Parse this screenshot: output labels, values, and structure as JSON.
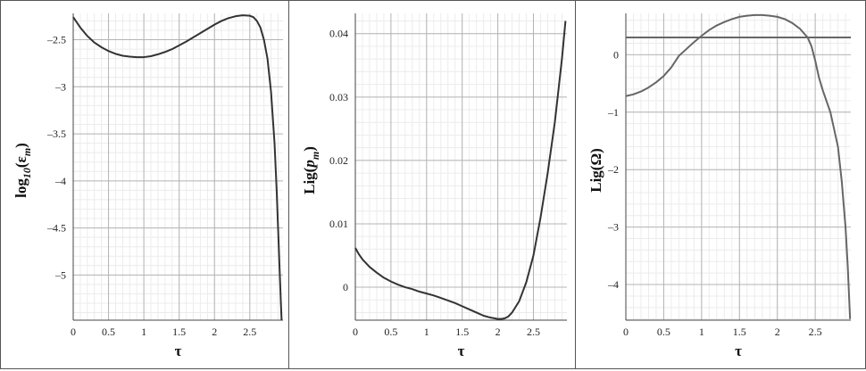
{
  "chart_data": [
    {
      "type": "line",
      "xlabel": "τ",
      "ylabel_parts": [
        "log",
        "10",
        "(ε",
        "m",
        ")"
      ],
      "xlim": [
        0,
        2.97
      ],
      "ylim": [
        -5.48,
        -2.22
      ],
      "xticks": [
        0,
        0.5,
        1,
        1.5,
        2,
        2.5
      ],
      "xtick_labels": [
        "0",
        "0.5",
        "1",
        "1.5",
        "2",
        "2.5"
      ],
      "yticks": [
        -2.5,
        -3,
        -3.5,
        -4,
        -4.5,
        -5
      ],
      "ytick_labels": [
        "–2.5",
        "–3",
        "–3.5",
        "–4",
        "–4.5",
        "–5"
      ],
      "grid": true,
      "line_color": "#333333",
      "series": [
        {
          "x": [
            0,
            0.1,
            0.2,
            0.3,
            0.4,
            0.5,
            0.6,
            0.7,
            0.8,
            0.9,
            1.0,
            1.1,
            1.2,
            1.3,
            1.4,
            1.5,
            1.6,
            1.7,
            1.8,
            1.9,
            2.0,
            2.1,
            2.2,
            2.3,
            2.4,
            2.5,
            2.55,
            2.6,
            2.65,
            2.7,
            2.75,
            2.8,
            2.85,
            2.88,
            2.9,
            2.92,
            2.94,
            2.95
          ],
          "y": [
            -2.26,
            -2.37,
            -2.46,
            -2.53,
            -2.58,
            -2.62,
            -2.65,
            -2.67,
            -2.68,
            -2.685,
            -2.685,
            -2.675,
            -2.655,
            -2.63,
            -2.6,
            -2.56,
            -2.52,
            -2.475,
            -2.43,
            -2.385,
            -2.34,
            -2.3,
            -2.27,
            -2.25,
            -2.24,
            -2.245,
            -2.26,
            -2.3,
            -2.37,
            -2.5,
            -2.7,
            -3.05,
            -3.6,
            -4.1,
            -4.5,
            -4.9,
            -5.3,
            -5.48
          ]
        }
      ]
    },
    {
      "type": "line",
      "xlabel": "τ",
      "ylabel_parts": [
        "Lig(",
        "p",
        "m",
        ")"
      ],
      "xlim": [
        0,
        2.97
      ],
      "ylim": [
        -0.0052,
        0.0432
      ],
      "xticks": [
        0,
        0.5,
        1,
        1.5,
        2,
        2.5
      ],
      "xtick_labels": [
        "0",
        "0.5",
        "1",
        "1.5",
        "2",
        "2.5"
      ],
      "yticks": [
        0,
        0.01,
        0.02,
        0.03,
        0.04
      ],
      "ytick_labels": [
        "0",
        "0.01",
        "0.02",
        "0.03",
        "0.04"
      ],
      "grid": true,
      "line_color": "#333333",
      "series": [
        {
          "x": [
            0,
            0.05,
            0.1,
            0.2,
            0.3,
            0.4,
            0.5,
            0.6,
            0.7,
            0.8,
            0.9,
            1.0,
            1.1,
            1.2,
            1.3,
            1.4,
            1.5,
            1.6,
            1.7,
            1.8,
            1.9,
            2.0,
            2.05,
            2.1,
            2.15,
            2.2,
            2.3,
            2.4,
            2.5,
            2.6,
            2.7,
            2.8,
            2.85,
            2.9,
            2.95
          ],
          "y": [
            0.0062,
            0.0052,
            0.0044,
            0.0032,
            0.0023,
            0.0015,
            0.0009,
            0.0004,
            0.0,
            -0.0003,
            -0.0007,
            -0.001,
            -0.0013,
            -0.0017,
            -0.0021,
            -0.0025,
            -0.003,
            -0.0035,
            -0.004,
            -0.0045,
            -0.0048,
            -0.005,
            -0.005,
            -0.0049,
            -0.0046,
            -0.004,
            -0.0022,
            0.0008,
            0.005,
            0.011,
            0.018,
            0.026,
            0.031,
            0.036,
            0.042
          ]
        }
      ]
    },
    {
      "type": "line",
      "xlabel": "τ",
      "ylabel_parts": [
        "Lig(Ω)"
      ],
      "xlim": [
        0,
        2.97
      ],
      "ylim": [
        -4.62,
        0.72
      ],
      "xticks": [
        0,
        0.5,
        1,
        1.5,
        2,
        2.5
      ],
      "xtick_labels": [
        "0",
        "0.5",
        "1",
        "1.5",
        "2",
        "2.5"
      ],
      "yticks": [
        0,
        -1,
        -2,
        -3,
        -4
      ],
      "ytick_labels": [
        "0",
        "–1",
        "–2",
        "–3",
        "–4"
      ],
      "grid": true,
      "line_color": "#666666",
      "series": [
        {
          "x": [
            0,
            0.1,
            0.2,
            0.3,
            0.4,
            0.5,
            0.6,
            0.7,
            0.8,
            0.85,
            0.9,
            1.0,
            1.1,
            1.2,
            1.3,
            1.4,
            1.5,
            1.6,
            1.7,
            1.8,
            1.9,
            2.0,
            2.1,
            2.2,
            2.3,
            2.4,
            2.45,
            2.5,
            2.55,
            2.6,
            2.7,
            2.8,
            2.85,
            2.9,
            2.93,
            2.96
          ],
          "y": [
            -0.72,
            -0.69,
            -0.64,
            -0.57,
            -0.48,
            -0.37,
            -0.22,
            -0.02,
            0.1,
            0.16,
            0.22,
            0.33,
            0.43,
            0.51,
            0.57,
            0.62,
            0.66,
            0.68,
            0.69,
            0.69,
            0.68,
            0.66,
            0.62,
            0.55,
            0.45,
            0.3,
            0.15,
            -0.1,
            -0.4,
            -0.62,
            -1.0,
            -1.6,
            -2.2,
            -3.0,
            -3.7,
            -4.6
          ]
        },
        {
          "x": [
            0,
            2.97
          ],
          "y": [
            0.3,
            0.3
          ]
        }
      ]
    }
  ]
}
